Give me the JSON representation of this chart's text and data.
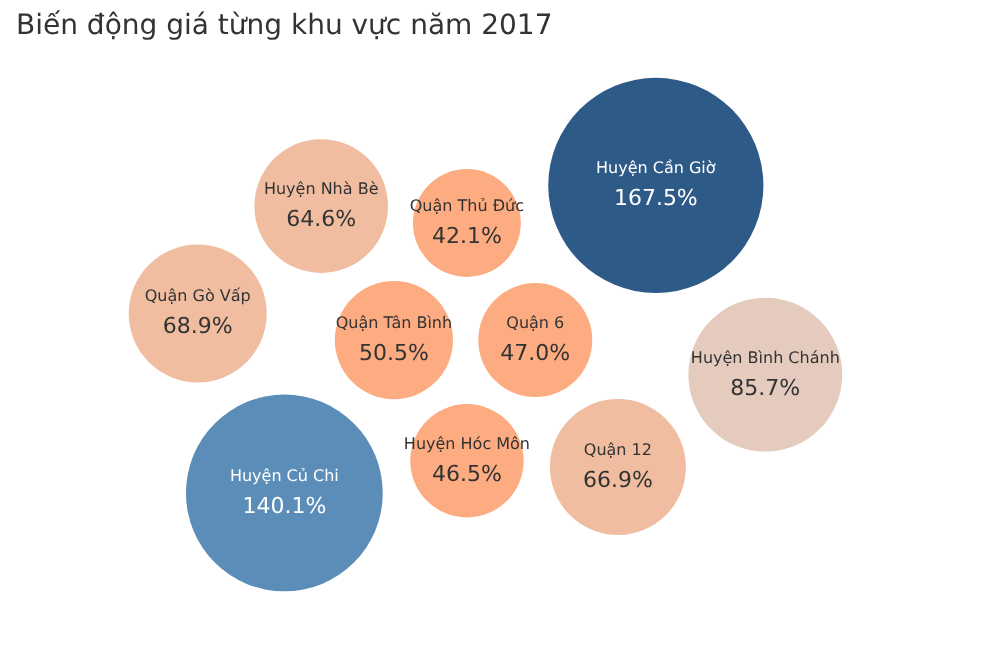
{
  "chart_data": {
    "type": "other",
    "title": "Biến động giá từng khu vực  năm 2017",
    "categories": [
      "Quận Tân Bình",
      "Quận 6",
      "Huyện Hóc Môn",
      "Quận Thủ Đức",
      "Huyện Nhà Bè",
      "Huyện Củ Chi",
      "Huyện Cần Giờ",
      "Quận 12",
      "Quận Gò Vấp",
      "Huyện Bình Chánh"
    ],
    "values": [
      50.5,
      47.0,
      46.5,
      42.1,
      64.6,
      140.1,
      167.5,
      66.9,
      68.9,
      85.7
    ],
    "value_labels": [
      "50.5%",
      "47.0%",
      "46.5%",
      "42.1%",
      "64.6%",
      "140.1%",
      "167.5%",
      "66.9%",
      "68.9%",
      "85.7%"
    ],
    "colors": [
      "#fdab80",
      "#fdab80",
      "#fdab80",
      "#fdab80",
      "#f0bda0",
      "#5b8db8",
      "#2e5a87",
      "#f0bda0",
      "#f0bda0",
      "#e4cbbd"
    ]
  }
}
